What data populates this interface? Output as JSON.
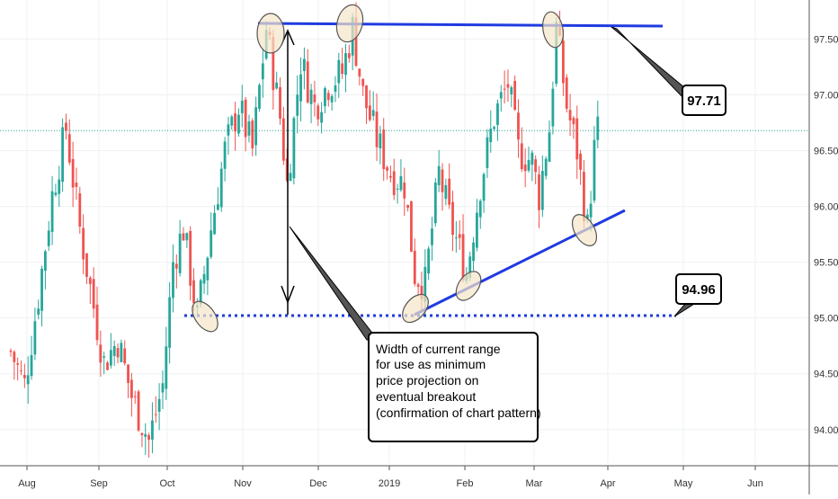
{
  "chart_data": {
    "type": "candlestick",
    "x_axis": {
      "labels": [
        "Aug",
        "Sep",
        "Oct",
        "Nov",
        "Dec",
        "2019",
        "Feb",
        "Mar",
        "Apr",
        "May",
        "Jun"
      ],
      "label_pos": [
        0,
        22,
        44,
        66,
        88,
        110,
        132,
        154,
        176,
        198,
        220
      ]
    },
    "y_axis": {
      "range": [
        93.7,
        97.85
      ],
      "ticks": [
        "94.00",
        "94.50",
        "95.00",
        "95.50",
        "96.00",
        "96.50",
        "97.00",
        "97.50"
      ],
      "tick_values": [
        94.0,
        94.5,
        95.0,
        95.5,
        96.0,
        96.5,
        97.0,
        97.5
      ],
      "side": "right"
    },
    "current_price_line": 96.68,
    "anchors": [
      [
        0,
        94.7
      ],
      [
        4,
        94.4
      ],
      [
        8,
        95.2
      ],
      [
        12,
        96.1
      ],
      [
        16,
        96.7
      ],
      [
        20,
        95.8
      ],
      [
        24,
        95.1
      ],
      [
        27,
        94.6
      ],
      [
        31,
        94.8
      ],
      [
        35,
        94.3
      ],
      [
        40,
        93.9
      ],
      [
        44,
        94.4
      ],
      [
        47,
        95.5
      ],
      [
        50,
        95.8
      ],
      [
        54,
        95.0
      ],
      [
        58,
        95.8
      ],
      [
        62,
        96.5
      ],
      [
        66,
        96.9
      ],
      [
        70,
        96.5
      ],
      [
        74,
        97.6
      ],
      [
        78,
        96.8
      ],
      [
        80,
        96.2
      ],
      [
        84,
        97.3
      ],
      [
        88,
        96.9
      ],
      [
        92,
        97.1
      ],
      [
        96,
        97.2
      ],
      [
        99,
        97.6
      ],
      [
        102,
        97.0
      ],
      [
        106,
        96.6
      ],
      [
        110,
        96.3
      ],
      [
        114,
        96.2
      ],
      [
        117,
        95.4
      ],
      [
        120,
        95.3
      ],
      [
        124,
        96.3
      ],
      [
        127,
        95.9
      ],
      [
        130,
        95.6
      ],
      [
        132,
        95.4
      ],
      [
        136,
        96.2
      ],
      [
        140,
        96.8
      ],
      [
        144,
        97.1
      ],
      [
        147,
        96.5
      ],
      [
        151,
        96.4
      ],
      [
        153,
        96.1
      ],
      [
        156,
        96.7
      ],
      [
        158,
        97.6
      ],
      [
        161,
        96.9
      ],
      [
        164,
        96.5
      ],
      [
        167,
        95.8
      ],
      [
        169,
        96.5
      ],
      [
        170,
        96.68
      ]
    ],
    "annotations": {
      "resistance_label": "97.71",
      "support_label": "94.96",
      "callout_lines": [
        "Width of current range",
        "for use as minimum",
        "price projection on",
        "eventual breakout",
        "(confirmation of chart pattern)"
      ]
    },
    "colors": {
      "up": "#26a69a",
      "down": "#ef5350",
      "trendline": "#1f3be0",
      "price_line": "#26a69a",
      "highlight_fill": "#f5e6c8"
    }
  }
}
